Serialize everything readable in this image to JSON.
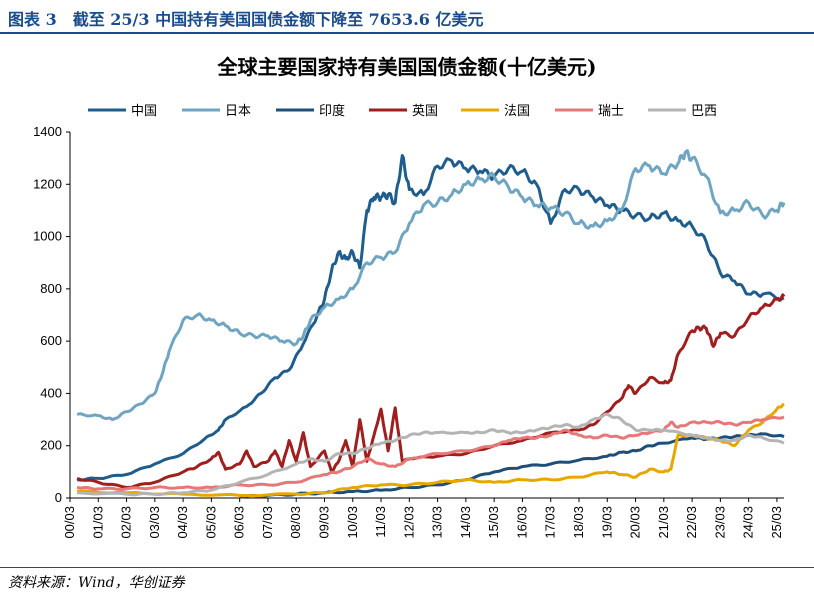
{
  "figure_label": "图表 3　截至 25/3 中国持有美国国债金额下降至 7653.6 亿美元",
  "source_text": "资料来源：Wind，华创证券",
  "chart_data": {
    "type": "line",
    "title": "全球主要国家持有美国国债金额(十亿美元)",
    "xlabel": "",
    "ylabel": "",
    "ylim": [
      0,
      1400
    ],
    "yticks": [
      0,
      200,
      400,
      600,
      800,
      1000,
      1200,
      1400
    ],
    "xlim": [
      2000.0,
      2025.25
    ],
    "x_tick_labels": [
      "00/03",
      "01/03",
      "02/03",
      "03/03",
      "04/03",
      "05/03",
      "06/03",
      "07/03",
      "08/03",
      "09/03",
      "10/03",
      "11/03",
      "12/03",
      "13/03",
      "14/03",
      "15/03",
      "16/03",
      "17/03",
      "18/03",
      "19/03",
      "20/03",
      "21/03",
      "22/03",
      "23/03",
      "24/03",
      "25/03"
    ],
    "grid": false,
    "legend_position": "top",
    "series": [
      {
        "name": "中国",
        "color": "#1f5d8c",
        "points": [
          [
            2000.25,
            70
          ],
          [
            2001,
            75
          ],
          [
            2002,
            90
          ],
          [
            2003,
            130
          ],
          [
            2004,
            170
          ],
          [
            2004.75,
            225
          ],
          [
            2005.25,
            260
          ],
          [
            2005.5,
            300
          ],
          [
            2006.25,
            350
          ],
          [
            2006.75,
            400
          ],
          [
            2007.25,
            460
          ],
          [
            2007.75,
            490
          ],
          [
            2008.25,
            590
          ],
          [
            2008.75,
            700
          ],
          [
            2009,
            760
          ],
          [
            2009.25,
            870
          ],
          [
            2009.5,
            940
          ],
          [
            2009.75,
            915
          ],
          [
            2010,
            940
          ],
          [
            2010.25,
            880
          ],
          [
            2010.5,
            1100
          ],
          [
            2010.75,
            1150
          ],
          [
            2011,
            1150
          ],
          [
            2011.25,
            1160
          ],
          [
            2011.5,
            1130
          ],
          [
            2011.75,
            1310
          ],
          [
            2012,
            1180
          ],
          [
            2012.5,
            1160
          ],
          [
            2013,
            1270
          ],
          [
            2013.5,
            1290
          ],
          [
            2014,
            1260
          ],
          [
            2014.5,
            1250
          ],
          [
            2015,
            1230
          ],
          [
            2015.5,
            1260
          ],
          [
            2016,
            1250
          ],
          [
            2016.5,
            1200
          ],
          [
            2017,
            1050
          ],
          [
            2017.5,
            1180
          ],
          [
            2018,
            1180
          ],
          [
            2018.5,
            1150
          ],
          [
            2019,
            1120
          ],
          [
            2019.5,
            1100
          ],
          [
            2020,
            1080
          ],
          [
            2020.5,
            1070
          ],
          [
            2021,
            1090
          ],
          [
            2021.5,
            1060
          ],
          [
            2022,
            1040
          ],
          [
            2022.5,
            980
          ],
          [
            2023,
            860
          ],
          [
            2023.5,
            830
          ],
          [
            2024,
            780
          ],
          [
            2024.5,
            780
          ],
          [
            2025.25,
            765
          ]
        ]
      },
      {
        "name": "日本",
        "color": "#6fa5c1",
        "points": [
          [
            2000.25,
            320
          ],
          [
            2001,
            315
          ],
          [
            2001.5,
            300
          ],
          [
            2002,
            330
          ],
          [
            2002.5,
            360
          ],
          [
            2003,
            400
          ],
          [
            2003.25,
            470
          ],
          [
            2003.5,
            560
          ],
          [
            2004,
            680
          ],
          [
            2004.5,
            700
          ],
          [
            2005,
            680
          ],
          [
            2005.5,
            660
          ],
          [
            2006,
            630
          ],
          [
            2006.5,
            620
          ],
          [
            2007,
            620
          ],
          [
            2007.5,
            600
          ],
          [
            2008,
            590
          ],
          [
            2008.25,
            620
          ],
          [
            2008.5,
            680
          ],
          [
            2009,
            730
          ],
          [
            2009.5,
            760
          ],
          [
            2010,
            800
          ],
          [
            2010.5,
            900
          ],
          [
            2011,
            920
          ],
          [
            2011.5,
            940
          ],
          [
            2012,
            1050
          ],
          [
            2012.5,
            1120
          ],
          [
            2013,
            1130
          ],
          [
            2013.5,
            1160
          ],
          [
            2014,
            1200
          ],
          [
            2014.5,
            1220
          ],
          [
            2015,
            1230
          ],
          [
            2015.5,
            1190
          ],
          [
            2016,
            1150
          ],
          [
            2016.5,
            1120
          ],
          [
            2017,
            1110
          ],
          [
            2017.5,
            1090
          ],
          [
            2018,
            1050
          ],
          [
            2018.5,
            1040
          ],
          [
            2019,
            1060
          ],
          [
            2019.5,
            1100
          ],
          [
            2020,
            1260
          ],
          [
            2020.5,
            1270
          ],
          [
            2021,
            1240
          ],
          [
            2021.5,
            1280
          ],
          [
            2021.75,
            1320
          ],
          [
            2022,
            1300
          ],
          [
            2022.5,
            1230
          ],
          [
            2023,
            1090
          ],
          [
            2023.5,
            1100
          ],
          [
            2024,
            1130
          ],
          [
            2024.5,
            1080
          ],
          [
            2025,
            1100
          ],
          [
            2025.25,
            1130
          ]
        ]
      },
      {
        "name": "印度",
        "color": "#1e4f78",
        "points": [
          [
            2006,
            5
          ],
          [
            2007,
            10
          ],
          [
            2008,
            15
          ],
          [
            2009,
            20
          ],
          [
            2010,
            25
          ],
          [
            2011,
            30
          ],
          [
            2012,
            40
          ],
          [
            2013,
            50
          ],
          [
            2014,
            70
          ],
          [
            2015,
            100
          ],
          [
            2016,
            120
          ],
          [
            2017,
            130
          ],
          [
            2018,
            145
          ],
          [
            2019,
            160
          ],
          [
            2019.5,
            175
          ],
          [
            2020,
            180
          ],
          [
            2020.5,
            200
          ],
          [
            2021,
            210
          ],
          [
            2022,
            230
          ],
          [
            2022.5,
            225
          ],
          [
            2023,
            230
          ],
          [
            2023.5,
            235
          ],
          [
            2024,
            240
          ],
          [
            2024.5,
            245
          ],
          [
            2025.25,
            235
          ]
        ]
      },
      {
        "name": "英国",
        "color": "#a01e1e",
        "points": [
          [
            2000.25,
            75
          ],
          [
            2001,
            60
          ],
          [
            2002,
            40
          ],
          [
            2003,
            60
          ],
          [
            2004,
            100
          ],
          [
            2004.5,
            120
          ],
          [
            2005,
            150
          ],
          [
            2005.25,
            175
          ],
          [
            2005.5,
            110
          ],
          [
            2006,
            130
          ],
          [
            2006.25,
            180
          ],
          [
            2006.5,
            120
          ],
          [
            2007,
            140
          ],
          [
            2007.25,
            180
          ],
          [
            2007.5,
            120
          ],
          [
            2007.75,
            220
          ],
          [
            2008,
            140
          ],
          [
            2008.25,
            250
          ],
          [
            2008.5,
            120
          ],
          [
            2009,
            180
          ],
          [
            2009.25,
            100
          ],
          [
            2009.5,
            140
          ],
          [
            2009.75,
            220
          ],
          [
            2010,
            120
          ],
          [
            2010.25,
            300
          ],
          [
            2010.5,
            140
          ],
          [
            2010.75,
            240
          ],
          [
            2011,
            340
          ],
          [
            2011.25,
            180
          ],
          [
            2011.5,
            345
          ],
          [
            2011.75,
            140
          ],
          [
            2012,
            150
          ],
          [
            2013,
            160
          ],
          [
            2014,
            170
          ],
          [
            2015,
            200
          ],
          [
            2016,
            220
          ],
          [
            2017,
            250
          ],
          [
            2018,
            260
          ],
          [
            2018.5,
            280
          ],
          [
            2019,
            330
          ],
          [
            2019.5,
            380
          ],
          [
            2019.75,
            430
          ],
          [
            2020,
            400
          ],
          [
            2020.5,
            460
          ],
          [
            2021,
            440
          ],
          [
            2021.25,
            450
          ],
          [
            2021.5,
            550
          ],
          [
            2022,
            640
          ],
          [
            2022.25,
            650
          ],
          [
            2022.5,
            650
          ],
          [
            2022.75,
            580
          ],
          [
            2023,
            630
          ],
          [
            2023.5,
            620
          ],
          [
            2024,
            690
          ],
          [
            2024.5,
            730
          ],
          [
            2025,
            760
          ],
          [
            2025.25,
            770
          ]
        ]
      },
      {
        "name": "法国",
        "color": "#e6a800",
        "points": [
          [
            2000.25,
            25
          ],
          [
            2002,
            20
          ],
          [
            2004,
            15
          ],
          [
            2006,
            10
          ],
          [
            2008,
            15
          ],
          [
            2009,
            20
          ],
          [
            2010,
            40
          ],
          [
            2011,
            50
          ],
          [
            2012,
            50
          ],
          [
            2013,
            60
          ],
          [
            2014,
            70
          ],
          [
            2015,
            60
          ],
          [
            2016,
            70
          ],
          [
            2017,
            70
          ],
          [
            2018,
            80
          ],
          [
            2019,
            100
          ],
          [
            2019.5,
            90
          ],
          [
            2020,
            80
          ],
          [
            2020.5,
            110
          ],
          [
            2021,
            100
          ],
          [
            2021.25,
            110
          ],
          [
            2021.5,
            240
          ],
          [
            2022,
            240
          ],
          [
            2022.5,
            230
          ],
          [
            2023,
            220
          ],
          [
            2023.5,
            200
          ],
          [
            2024,
            260
          ],
          [
            2024.5,
            290
          ],
          [
            2025,
            340
          ],
          [
            2025.25,
            360
          ]
        ]
      },
      {
        "name": "瑞士",
        "color": "#e67878",
        "points": [
          [
            2000.25,
            40
          ],
          [
            2001,
            35
          ],
          [
            2002,
            35
          ],
          [
            2003,
            40
          ],
          [
            2004,
            40
          ],
          [
            2005,
            40
          ],
          [
            2006,
            50
          ],
          [
            2007,
            50
          ],
          [
            2008,
            60
          ],
          [
            2009,
            90
          ],
          [
            2009.5,
            100
          ],
          [
            2010,
            120
          ],
          [
            2010.5,
            150
          ],
          [
            2011,
            130
          ],
          [
            2011.5,
            120
          ],
          [
            2012,
            150
          ],
          [
            2013,
            170
          ],
          [
            2014,
            180
          ],
          [
            2015,
            200
          ],
          [
            2015.5,
            220
          ],
          [
            2016,
            230
          ],
          [
            2016.5,
            230
          ],
          [
            2017,
            240
          ],
          [
            2017.5,
            260
          ],
          [
            2018,
            240
          ],
          [
            2018.5,
            230
          ],
          [
            2019,
            240
          ],
          [
            2019.5,
            230
          ],
          [
            2020,
            240
          ],
          [
            2020.5,
            250
          ],
          [
            2021,
            260
          ],
          [
            2021.25,
            290
          ],
          [
            2021.5,
            270
          ],
          [
            2022,
            290
          ],
          [
            2022.5,
            290
          ],
          [
            2023,
            290
          ],
          [
            2023.5,
            280
          ],
          [
            2024,
            290
          ],
          [
            2024.5,
            300
          ],
          [
            2025.25,
            310
          ]
        ]
      },
      {
        "name": "巴西",
        "color": "#b4b4b4",
        "points": [
          [
            2000.25,
            20
          ],
          [
            2002,
            15
          ],
          [
            2003,
            15
          ],
          [
            2004,
            20
          ],
          [
            2005,
            30
          ],
          [
            2006,
            60
          ],
          [
            2007,
            90
          ],
          [
            2008,
            130
          ],
          [
            2008.5,
            150
          ],
          [
            2009,
            140
          ],
          [
            2009.5,
            170
          ],
          [
            2010,
            170
          ],
          [
            2010.5,
            190
          ],
          [
            2011,
            210
          ],
          [
            2011.5,
            220
          ],
          [
            2012,
            240
          ],
          [
            2012.5,
            250
          ],
          [
            2013,
            250
          ],
          [
            2014,
            250
          ],
          [
            2014.5,
            250
          ],
          [
            2015,
            260
          ],
          [
            2015.5,
            250
          ],
          [
            2016,
            250
          ],
          [
            2016.5,
            260
          ],
          [
            2017,
            270
          ],
          [
            2017.5,
            280
          ],
          [
            2018,
            270
          ],
          [
            2018.5,
            300
          ],
          [
            2019,
            320
          ],
          [
            2019.5,
            300
          ],
          [
            2020,
            260
          ],
          [
            2020.5,
            260
          ],
          [
            2021,
            260
          ],
          [
            2022,
            240
          ],
          [
            2022.5,
            230
          ],
          [
            2023,
            220
          ],
          [
            2023.5,
            220
          ],
          [
            2024,
            240
          ],
          [
            2024.5,
            230
          ],
          [
            2025.25,
            210
          ]
        ]
      }
    ]
  }
}
